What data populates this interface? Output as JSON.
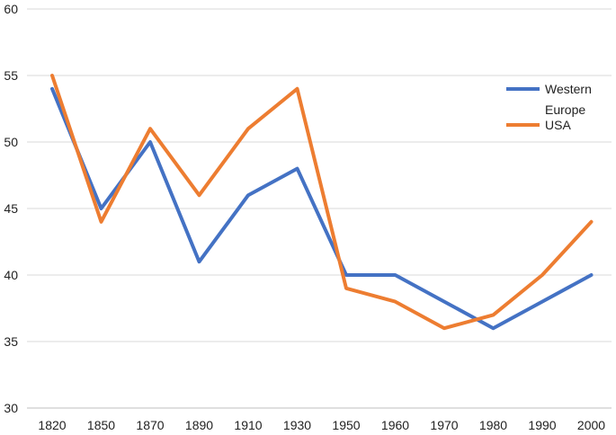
{
  "chart_data": {
    "type": "line",
    "title": "",
    "xlabel": "",
    "ylabel": "",
    "categories": [
      "1820",
      "1850",
      "1870",
      "1890",
      "1910",
      "1930",
      "1950",
      "1960",
      "1970",
      "1980",
      "1990",
      "2000"
    ],
    "ylim": [
      30,
      60
    ],
    "yticks": [
      30,
      35,
      40,
      45,
      50,
      55,
      60
    ],
    "grid": true,
    "legend_position": "top-right",
    "series": [
      {
        "name": "Western Europe",
        "color": "#4472C4",
        "values": [
          54,
          45,
          50,
          41,
          46,
          48,
          40,
          40,
          38,
          36,
          38,
          40
        ]
      },
      {
        "name": "USA",
        "color": "#ED7D31",
        "values": [
          55,
          44,
          51,
          46,
          51,
          54,
          39,
          38,
          36,
          37,
          40,
          44
        ]
      }
    ],
    "legend": {
      "western_europe_line1": "Western",
      "western_europe_line2": "Europe",
      "usa": "USA"
    }
  }
}
